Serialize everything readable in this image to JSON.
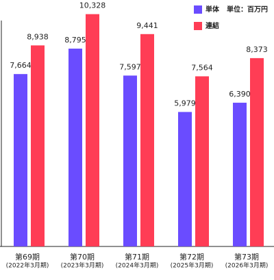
{
  "chart_data": {
    "type": "bar",
    "categories": [
      "第69期",
      "第70期",
      "第71期",
      "第72期",
      "第73期"
    ],
    "category_periods": [
      "(2022年3月期)",
      "(2023年3月期)",
      "(2024年3月期)",
      "(2025年3月期)",
      "(2026年3月期)"
    ],
    "unit_label": "単位：百万円",
    "series": [
      {
        "name": "単体",
        "color": "#6a4cff",
        "values": [
          7664,
          8795,
          7597,
          5979,
          6390
        ],
        "value_labels": [
          "7,664",
          "8,795",
          "7,597",
          "5,979",
          "6,390"
        ]
      },
      {
        "name": "連結",
        "color": "#ff3d55",
        "values": [
          8938,
          10328,
          9441,
          7564,
          8373
        ],
        "value_labels": [
          "8,938",
          "10,328",
          "9,441",
          "7,564",
          "8,373"
        ]
      }
    ],
    "ylim": [
      0,
      10500
    ]
  }
}
